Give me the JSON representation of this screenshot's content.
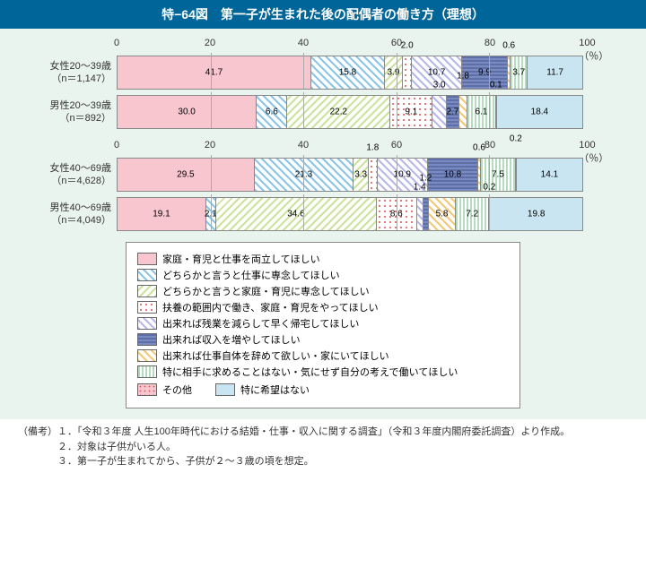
{
  "title": "特−64図　第一子が生まれた後の配偶者の働き方（理想）",
  "axis": {
    "ticks": [
      0,
      20,
      40,
      60,
      80,
      100
    ],
    "unit": "100（％）"
  },
  "patterns": [
    "p0",
    "p1",
    "p2",
    "p3",
    "p4",
    "p5",
    "p6",
    "p7",
    "p8",
    "p9"
  ],
  "colors": {
    "title_bg": "#006699",
    "chart_bg": "#eaf4ef",
    "border": "#888888"
  },
  "blocks": [
    {
      "rows": [
        {
          "label1": "女性20〜39歳",
          "label2": "（n＝1,147）",
          "segs": [
            {
              "v": 41.7,
              "p": 0,
              "lbl": "41.7"
            },
            {
              "v": 15.8,
              "p": 1,
              "lbl": "15.8"
            },
            {
              "v": 3.9,
              "p": 2,
              "lbl": "3.9"
            },
            {
              "v": 2.0,
              "p": 3,
              "lbl": "2.0",
              "pos": "above"
            },
            {
              "v": 10.7,
              "p": 4,
              "lbl": "10.7"
            },
            {
              "v": 9.9,
              "p": 5,
              "lbl": "9.9"
            },
            {
              "v": 0.6,
              "p": 6,
              "lbl": "0.6",
              "pos": "above"
            },
            {
              "v": 3.7,
              "p": 7,
              "lbl": "3.7"
            },
            {
              "v": 11.7,
              "p": 9,
              "lbl": "11.7"
            }
          ]
        },
        {
          "label1": "男性20〜39歳",
          "label2": "（n＝892）",
          "segs": [
            {
              "v": 30.0,
              "p": 0,
              "lbl": "30.0"
            },
            {
              "v": 6.6,
              "p": 1,
              "lbl": "6.6"
            },
            {
              "v": 22.2,
              "p": 2,
              "lbl": "22.2"
            },
            {
              "v": 9.1,
              "p": 3,
              "lbl": "9.1"
            },
            {
              "v": 3.0,
              "p": 4,
              "lbl": "3.0",
              "pos": "above"
            },
            {
              "v": 2.7,
              "p": 5,
              "lbl": "2.7"
            },
            {
              "v": 1.8,
              "p": 6,
              "lbl": "1.8",
              "pos": "above2"
            },
            {
              "v": 6.1,
              "p": 7,
              "lbl": "6.1"
            },
            {
              "v": 0.1,
              "p": 8,
              "lbl": "0.1",
              "pos": "above"
            },
            {
              "v": 18.4,
              "p": 9,
              "lbl": "18.4"
            }
          ]
        }
      ]
    },
    {
      "rows": [
        {
          "label1": "女性40〜69歳",
          "label2": "（n＝4,628）",
          "segs": [
            {
              "v": 29.5,
              "p": 0,
              "lbl": "29.5"
            },
            {
              "v": 21.3,
              "p": 1,
              "lbl": "21.3"
            },
            {
              "v": 3.3,
              "p": 2,
              "lbl": "3.3"
            },
            {
              "v": 1.8,
              "p": 3,
              "lbl": "1.8",
              "pos": "above"
            },
            {
              "v": 10.9,
              "p": 4,
              "lbl": "10.9"
            },
            {
              "v": 10.8,
              "p": 5,
              "lbl": "10.8"
            },
            {
              "v": 0.6,
              "p": 6,
              "lbl": "0.6",
              "pos": "above"
            },
            {
              "v": 7.5,
              "p": 7,
              "lbl": "7.5"
            },
            {
              "v": 0.2,
              "p": 8,
              "lbl": "0.2",
              "pos": "above2"
            },
            {
              "v": 14.1,
              "p": 9,
              "lbl": "14.1"
            }
          ]
        },
        {
          "label1": "男性40〜69歳",
          "label2": "（n＝4,049）",
          "segs": [
            {
              "v": 19.1,
              "p": 0,
              "lbl": "19.1"
            },
            {
              "v": 2.1,
              "p": 1,
              "lbl": "2.1"
            },
            {
              "v": 34.6,
              "p": 2,
              "lbl": "34.6"
            },
            {
              "v": 8.6,
              "p": 3,
              "lbl": "8.6"
            },
            {
              "v": 1.4,
              "p": 4,
              "lbl": "1.4",
              "pos": "above"
            },
            {
              "v": 1.2,
              "p": 5,
              "lbl": "1.2",
              "pos": "above2"
            },
            {
              "v": 5.8,
              "p": 6,
              "lbl": "5.8"
            },
            {
              "v": 7.2,
              "p": 7,
              "lbl": "7.2"
            },
            {
              "v": 0.2,
              "p": 8,
              "lbl": "0.2",
              "pos": "above"
            },
            {
              "v": 19.8,
              "p": 9,
              "lbl": "19.8"
            }
          ]
        }
      ]
    }
  ],
  "legend": [
    {
      "p": 0,
      "t": "家庭・育児と仕事を両立してほしい"
    },
    {
      "p": 1,
      "t": "どちらかと言うと仕事に専念してほしい"
    },
    {
      "p": 2,
      "t": "どちらかと言うと家庭・育児に専念してほしい"
    },
    {
      "p": 3,
      "t": "扶養の範囲内で働き、家庭・育児をやってほしい"
    },
    {
      "p": 4,
      "t": "出来れば残業を減らして早く帰宅してほしい"
    },
    {
      "p": 5,
      "t": "出来れば収入を増やしてほしい"
    },
    {
      "p": 6,
      "t": "出来れば仕事自体を辞めて欲しい・家にいてほしい"
    },
    {
      "p": 7,
      "t": "特に相手に求めることはない・気にせず自分の考えで働いてほしい"
    }
  ],
  "legend_last": [
    {
      "p": 8,
      "t": "その他"
    },
    {
      "p": 9,
      "t": "特に希望はない"
    }
  ],
  "notes_label": "（備考）",
  "notes": [
    "１．「令和３年度 人生100年時代における結婚・仕事・収入に関する調査」（令和３年度内閣府委託調査）より作成。",
    "２．対象は子供がいる人。",
    "３．第一子が生まれてから、子供が２〜３歳の頃を想定。"
  ]
}
